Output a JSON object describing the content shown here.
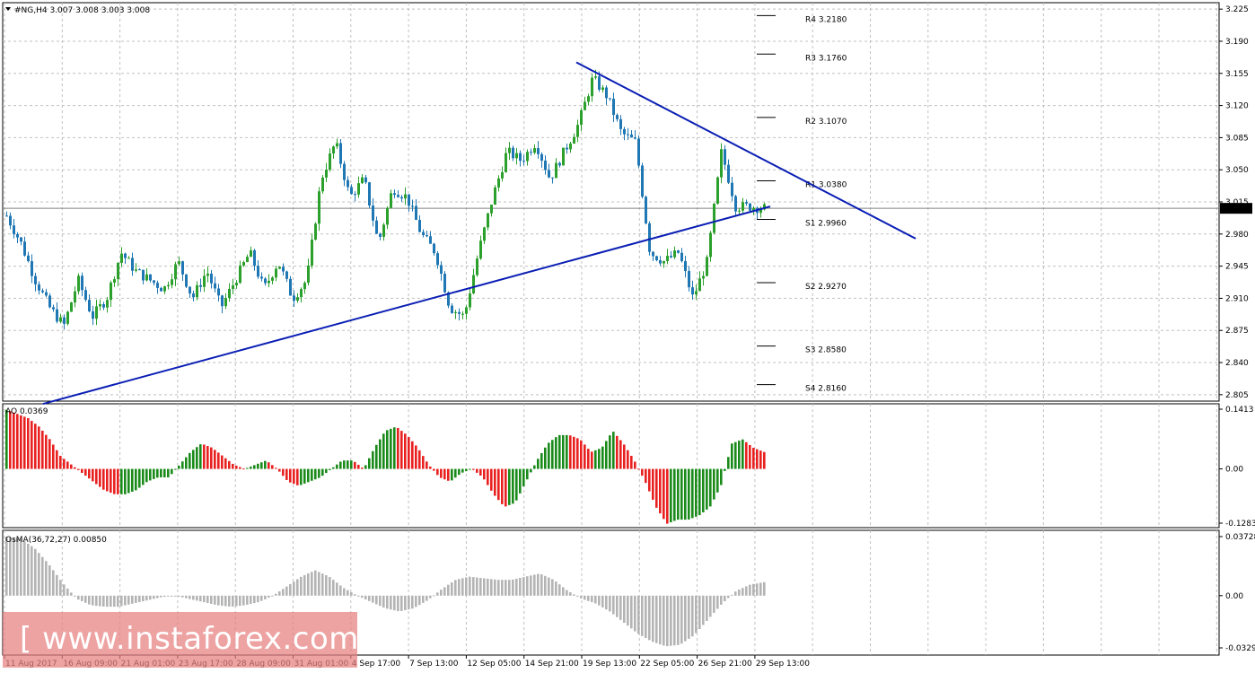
{
  "header": {
    "symbol_line": "#NG,H4  3.007 3.008 3.003 3.008",
    "ao_label": "AO 0.0369",
    "osma_label": "OsMA(36,72,27) 0.00850"
  },
  "price_axis": {
    "ticks": [
      "3.225",
      "3.190",
      "3.155",
      "3.120",
      "3.085",
      "3.050",
      "3.015",
      "2.980",
      "2.945",
      "2.910",
      "2.875",
      "2.840",
      "2.805"
    ],
    "current": "3.008"
  },
  "ao_axis": {
    "ticks": [
      "0.1413",
      "0.00",
      "-0.1283"
    ]
  },
  "osma_axis": {
    "ticks": [
      "0.03728",
      "0.00",
      "-0.03297"
    ]
  },
  "time_axis": {
    "labels": [
      "11 Aug 2017",
      "16 Aug 09:00",
      "21 Aug 01:00",
      "23 Aug 17:00",
      "28 Aug 09:00",
      "31 Aug 01:00",
      "4 Sep 17:00",
      "7 Sep 13:00",
      "12 Sep 05:00",
      "14 Sep 21:00",
      "19 Sep 13:00",
      "22 Sep 05:00",
      "26 Sep 21:00",
      "29 Sep 13:00"
    ]
  },
  "pivots": [
    {
      "label": "R4 3.2180",
      "value": 3.218
    },
    {
      "label": "R3 3.1760",
      "value": 3.176
    },
    {
      "label": "R2 3.1070",
      "value": 3.107
    },
    {
      "label": "R1 3.0380",
      "value": 3.038
    },
    {
      "label": "S1 2.9960",
      "value": 2.996
    },
    {
      "label": "S2 2.9270",
      "value": 2.927
    },
    {
      "label": "S3 2.8580",
      "value": 2.858
    },
    {
      "label": "S4 2.8160",
      "value": 2.816
    }
  ],
  "watermark": "[ www.instaforex.com ]",
  "colors": {
    "bull": "#2ca02c",
    "bear": "#1f77b4",
    "ao_up": "#1a8a1a",
    "ao_down": "#e82020",
    "osma": "#b4b4b4",
    "trendline": "#0a1eb4",
    "grid": "#c0c0c0"
  },
  "chart_data": [
    {
      "type": "candlestick",
      "title": "#NG,H4",
      "ylim": [
        2.798,
        3.232
      ],
      "close_points": [
        3.0,
        2.97,
        2.93,
        2.9,
        2.88,
        2.93,
        2.89,
        2.91,
        2.96,
        2.94,
        2.93,
        2.92,
        2.95,
        2.91,
        2.94,
        2.9,
        2.93,
        2.96,
        2.92,
        2.95,
        2.91,
        2.93,
        3.04,
        3.08,
        3.02,
        3.04,
        2.97,
        3.03,
        3.02,
        2.98,
        2.96,
        2.9,
        2.89,
        2.96,
        3.02,
        3.07,
        3.06,
        3.08,
        3.04,
        3.07,
        3.1,
        3.15,
        3.13,
        3.09,
        3.08,
        2.96,
        2.95,
        2.96,
        2.91,
        2.95,
        3.07,
        3.01,
        3.01,
        3.008
      ],
      "trendlines": [
        {
          "x": [
            0.0,
            1.0
          ],
          "y": [
            2.795,
            3.01
          ]
        },
        {
          "x": [
            0.0,
            1.0
          ],
          "y": [
            3.167,
            2.975
          ]
        }
      ]
    },
    {
      "type": "bar",
      "title": "AO",
      "value": 0.0369,
      "ylim": [
        -0.1283,
        0.1413
      ],
      "values": [
        0.14,
        0.13,
        0.12,
        0.1,
        0.07,
        0.03,
        0.01,
        -0.01,
        -0.03,
        -0.05,
        -0.06,
        -0.06,
        -0.05,
        -0.03,
        -0.02,
        -0.02,
        0.01,
        0.04,
        0.06,
        0.05,
        0.03,
        0.01,
        0.0,
        0.01,
        0.02,
        0.0,
        -0.03,
        -0.04,
        -0.03,
        -0.02,
        0.0,
        0.02,
        0.02,
        0.0,
        0.05,
        0.09,
        0.1,
        0.08,
        0.05,
        0.01,
        -0.02,
        -0.03,
        -0.01,
        0.0,
        -0.02,
        -0.06,
        -0.09,
        -0.08,
        -0.03,
        0.02,
        0.06,
        0.08,
        0.08,
        0.07,
        0.04,
        0.05,
        0.09,
        0.06,
        0.02,
        -0.03,
        -0.09,
        -0.13,
        -0.12,
        -0.12,
        -0.11,
        -0.09,
        -0.04,
        0.06,
        0.07,
        0.05,
        0.04
      ]
    },
    {
      "type": "bar",
      "title": "OsMA(36,72,27)",
      "value": 0.0085,
      "ylim": [
        -0.03297,
        0.03728
      ],
      "values": [
        0.037,
        0.036,
        0.03,
        0.02,
        0.008,
        -0.002,
        -0.006,
        -0.007,
        -0.007,
        -0.005,
        -0.003,
        -0.001,
        0.0,
        -0.002,
        -0.004,
        -0.006,
        -0.007,
        -0.006,
        -0.004,
        0.0,
        0.006,
        0.012,
        0.016,
        0.012,
        0.005,
        0.0,
        -0.004,
        -0.008,
        -0.01,
        -0.008,
        -0.003,
        0.004,
        0.01,
        0.012,
        0.011,
        0.01,
        0.01,
        0.012,
        0.014,
        0.01,
        0.003,
        -0.002,
        -0.005,
        -0.01,
        -0.017,
        -0.024,
        -0.029,
        -0.032,
        -0.031,
        -0.025,
        -0.015,
        -0.005,
        0.003,
        0.007,
        0.0085
      ]
    }
  ]
}
